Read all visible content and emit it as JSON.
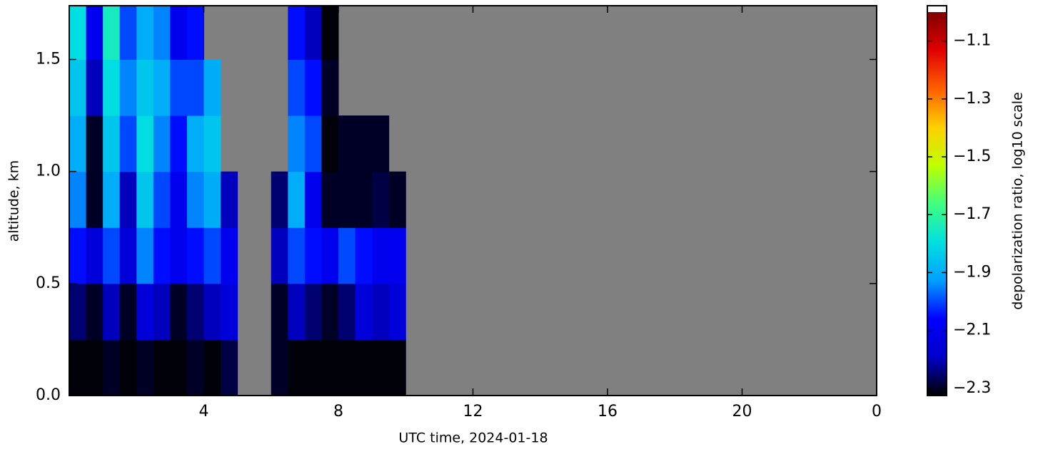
{
  "chart_data": {
    "type": "heatmap",
    "xlabel": "UTC time,  2024-01-18",
    "ylabel": "altitude, km",
    "colorbar_label": "depolarization ratio, log10 scale",
    "xlim": [
      0,
      24
    ],
    "ylim": [
      0,
      1.74
    ],
    "xticks": [
      4,
      8,
      12,
      16,
      20,
      {
        "value": 24,
        "label": "0"
      }
    ],
    "yticks": [
      {
        "value": 0,
        "label": "0.0"
      },
      0.5,
      {
        "value": 1,
        "label": "1.0"
      },
      1.5
    ],
    "clim": [
      -2.325,
      -1.0
    ],
    "cticks": [
      {
        "value": -1.1,
        "label": "−1.1"
      },
      {
        "value": -1.3,
        "label": "−1.3"
      },
      {
        "value": -1.5,
        "label": "−1.5"
      },
      {
        "value": -1.7,
        "label": "−1.7"
      },
      {
        "value": -1.9,
        "label": "−1.9"
      },
      {
        "value": -2.1,
        "label": "−2.1"
      },
      {
        "value": -2.3,
        "label": "−2.3"
      }
    ],
    "colormap": [
      "#000000",
      "#0000c8",
      "#0000ff",
      "#00a0ff",
      "#00e0e0",
      "#40ff80",
      "#c0ff00",
      "#ffd000",
      "#ff6000",
      "#e00000",
      "#800000"
    ],
    "over_color": "#ffffff",
    "missing_color": "#808080",
    "x_edges": [
      0,
      0.5,
      1,
      1.5,
      2,
      2.5,
      3,
      3.5,
      4,
      4.5,
      5,
      5.5,
      6,
      6.5,
      7,
      7.5,
      8,
      8.5,
      9,
      9.5,
      10
    ],
    "y_edges": [
      0,
      0.25,
      0.5,
      0.75,
      1,
      1.25,
      1.5,
      1.74
    ],
    "values": [
      [
        -2.32,
        -2.32,
        -2.3,
        -2.32,
        -2.3,
        -2.32,
        -2.32,
        -2.3,
        -2.32,
        -2.28,
        null,
        null,
        -2.3,
        -2.32,
        -2.32,
        -2.32,
        -2.32,
        -2.32,
        -2.32,
        -2.32
      ],
      [
        -2.25,
        -2.3,
        -2.2,
        -2.3,
        -2.15,
        -2.2,
        -2.3,
        -2.25,
        -2.2,
        -2.15,
        null,
        null,
        -2.3,
        -2.2,
        -2.25,
        -2.3,
        -2.25,
        -2.15,
        -2.2,
        -2.15
      ],
      [
        -2.05,
        -2.15,
        -2.0,
        -2.15,
        -1.95,
        -2.05,
        -2.1,
        -2.05,
        -2.0,
        -2.1,
        null,
        null,
        -2.2,
        -2.0,
        -2.05,
        -2.1,
        -2.0,
        -2.05,
        -2.1,
        -2.1
      ],
      [
        -1.95,
        -2.3,
        -1.9,
        -2.2,
        -1.85,
        -2.0,
        -2.1,
        -1.95,
        -1.9,
        -2.2,
        null,
        null,
        -2.25,
        -1.9,
        -2.1,
        -2.3,
        -2.3,
        -2.3,
        -2.28,
        -2.3
      ],
      [
        -1.9,
        -2.3,
        -1.85,
        -2.0,
        -1.8,
        -1.95,
        -2.05,
        -1.9,
        -1.85,
        null,
        null,
        null,
        null,
        -1.95,
        -2.0,
        -2.32,
        -2.3,
        -2.3,
        -2.3,
        null
      ],
      [
        -1.85,
        -2.2,
        -1.8,
        -1.95,
        -1.85,
        -1.9,
        -2.0,
        -2.0,
        -1.9,
        null,
        null,
        null,
        null,
        -2.0,
        -2.05,
        -2.3,
        null,
        null,
        null,
        null
      ],
      [
        -1.8,
        -2.1,
        -1.75,
        -2.0,
        -1.9,
        -1.95,
        -2.1,
        -2.05,
        null,
        null,
        null,
        null,
        null,
        -2.05,
        -2.2,
        -2.32,
        null,
        null,
        null,
        null
      ]
    ]
  }
}
